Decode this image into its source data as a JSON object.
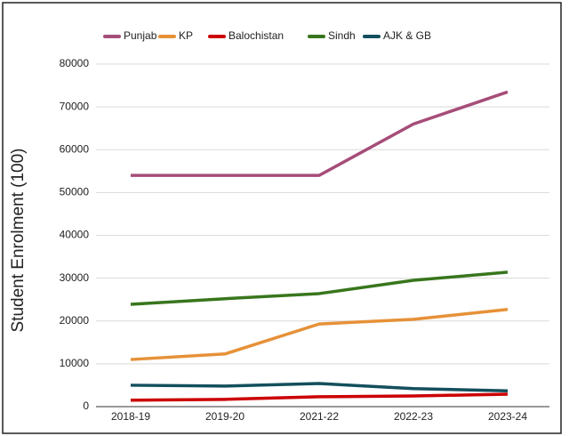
{
  "chart_data": {
    "type": "line",
    "y_label": "Student Enrolment (100)",
    "categories": [
      "2018-19",
      "2019-20",
      "2021-22",
      "2022-23",
      "2023-24"
    ],
    "series": [
      {
        "name": "Punjab",
        "color": "#a64d79",
        "values": [
          54000,
          54000,
          54000,
          66000,
          73500
        ]
      },
      {
        "name": "KP",
        "color": "#e69138",
        "values": [
          11000,
          12300,
          19300,
          20400,
          22700
        ]
      },
      {
        "name": "Balochistan",
        "color": "#cc0000",
        "values": [
          1500,
          1700,
          2300,
          2500,
          2900
        ]
      },
      {
        "name": "Sindh",
        "color": "#38761d",
        "values": [
          23900,
          25200,
          26400,
          29500,
          31400
        ]
      },
      {
        "name": "AJK & GB",
        "color": "#134f5c",
        "values": [
          5000,
          4800,
          5400,
          4200,
          3700
        ]
      }
    ],
    "ylim": [
      0,
      80000
    ],
    "yticks": [
      0,
      10000,
      20000,
      30000,
      40000,
      50000,
      60000,
      70000,
      80000
    ],
    "grid": true,
    "legend": "top"
  }
}
